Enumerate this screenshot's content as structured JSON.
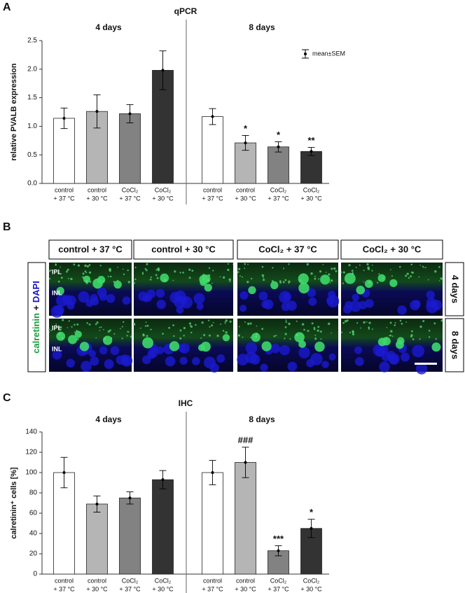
{
  "panel_labels": [
    "A",
    "B",
    "C"
  ],
  "chart_data": [
    {
      "type": "bar",
      "title": "qPCR",
      "y_label": "relative PVALB expression",
      "groups": [
        "4 days",
        "8 days"
      ],
      "categories": [
        [
          "control",
          "+ 37 °C"
        ],
        [
          "control",
          "+ 30 °C"
        ],
        [
          "CoCl₂",
          "+ 37 °C"
        ],
        [
          "CoCl₂",
          "+ 30 °C"
        ],
        [
          "control",
          "+ 37 °C"
        ],
        [
          "control",
          "+ 30 °C"
        ],
        [
          "CoCl₂",
          "+ 37 °C"
        ],
        [
          "CoCl₂",
          "+ 30 °C"
        ]
      ],
      "values": [
        1.14,
        1.26,
        1.22,
        1.98,
        1.17,
        0.71,
        0.64,
        0.56
      ],
      "errors": [
        0.18,
        0.29,
        0.16,
        0.34,
        0.14,
        0.13,
        0.09,
        0.07
      ],
      "annotations": [
        null,
        null,
        null,
        null,
        null,
        "*",
        "*",
        "**"
      ],
      "colors": [
        "#ffffff",
        "#b5b5b5",
        "#828282",
        "#333333",
        "#ffffff",
        "#b5b5b5",
        "#828282",
        "#333333"
      ],
      "legend_label": "mean±SEM",
      "ylim": [
        0,
        2.5
      ],
      "yticks": [
        {
          "value": 0,
          "label": "0.0"
        },
        0.5,
        {
          "value": 1,
          "label": "1.0"
        },
        1.5,
        {
          "value": 2,
          "label": "2.0"
        },
        2.5
      ]
    },
    {
      "type": "bar",
      "title": "IHC",
      "y_label": "calretinin⁺ cells [%]",
      "groups": [
        "4 days",
        "8 days"
      ],
      "categories": [
        [
          "control",
          "+ 37 °C"
        ],
        [
          "control",
          "+ 30 °C"
        ],
        [
          "CoCl₂",
          "+ 37 °C"
        ],
        [
          "CoCl₂",
          "+ 30 °C"
        ],
        [
          "control",
          "+ 37 °C"
        ],
        [
          "control",
          "+ 30 °C"
        ],
        [
          "CoCl₂",
          "+ 37 °C"
        ],
        [
          "CoCl₂",
          "+ 30 °C"
        ]
      ],
      "values": [
        100,
        69,
        75,
        93,
        100,
        110,
        23,
        45
      ],
      "errors": [
        15,
        8,
        6,
        9,
        12,
        15,
        5,
        9
      ],
      "annotations": [
        null,
        null,
        null,
        null,
        null,
        "###",
        "***",
        "*"
      ],
      "colors": [
        "#ffffff",
        "#b5b5b5",
        "#828282",
        "#333333",
        "#ffffff",
        "#b5b5b5",
        "#828282",
        "#333333"
      ],
      "ylim": [
        0,
        140
      ],
      "yticks": [
        0,
        20,
        40,
        60,
        80,
        100,
        120,
        140
      ]
    }
  ],
  "image_panel": {
    "columns": [
      "control + 37 °C",
      "control + 30 °C",
      "CoCl₂ + 37 °C",
      "CoCl₂ + 30 °C"
    ],
    "rows": [
      "4 days",
      "8 days"
    ],
    "stain": [
      "calretinin",
      "+",
      "DAPI"
    ],
    "layers": [
      "IPL",
      "INL"
    ]
  }
}
